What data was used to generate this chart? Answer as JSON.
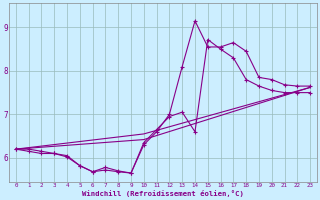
{
  "xlabel": "Windchill (Refroidissement éolien,°C)",
  "bg_color": "#cceeff",
  "line_color": "#880088",
  "xlim": [
    -0.5,
    23.5
  ],
  "ylim": [
    5.45,
    9.55
  ],
  "xticks": [
    0,
    1,
    2,
    3,
    4,
    5,
    6,
    7,
    8,
    9,
    10,
    11,
    12,
    13,
    14,
    15,
    16,
    17,
    18,
    19,
    20,
    21,
    22,
    23
  ],
  "yticks": [
    6,
    7,
    8,
    9
  ],
  "grid_color": "#99bbbb",
  "line1_x": [
    0,
    1,
    2,
    3,
    4,
    5,
    6,
    7,
    8,
    9,
    10,
    11,
    12,
    13,
    14,
    15,
    16,
    17,
    18,
    19,
    20,
    21,
    22,
    23
  ],
  "line1_y": [
    6.2,
    6.2,
    6.15,
    6.1,
    6.05,
    5.82,
    5.68,
    5.72,
    5.68,
    5.65,
    6.3,
    6.6,
    7.0,
    8.1,
    9.15,
    8.55,
    8.55,
    8.65,
    8.45,
    7.85,
    7.8,
    7.68,
    7.65,
    7.65
  ],
  "line2_x": [
    0,
    1,
    2,
    3,
    4,
    5,
    6,
    7,
    8,
    9,
    10,
    11,
    12,
    13,
    14,
    15,
    16,
    17,
    18,
    19,
    20,
    21,
    22,
    23
  ],
  "line2_y": [
    6.2,
    6.15,
    6.1,
    6.1,
    6.02,
    5.82,
    5.68,
    5.78,
    5.7,
    5.65,
    6.35,
    6.65,
    6.95,
    7.05,
    6.6,
    8.72,
    8.5,
    8.3,
    7.8,
    7.65,
    7.55,
    7.5,
    7.5,
    7.5
  ],
  "line3_x": [
    0,
    10,
    23
  ],
  "line3_y": [
    6.2,
    6.42,
    7.62
  ],
  "line4_x": [
    0,
    10,
    23
  ],
  "line4_y": [
    6.2,
    6.55,
    7.62
  ]
}
